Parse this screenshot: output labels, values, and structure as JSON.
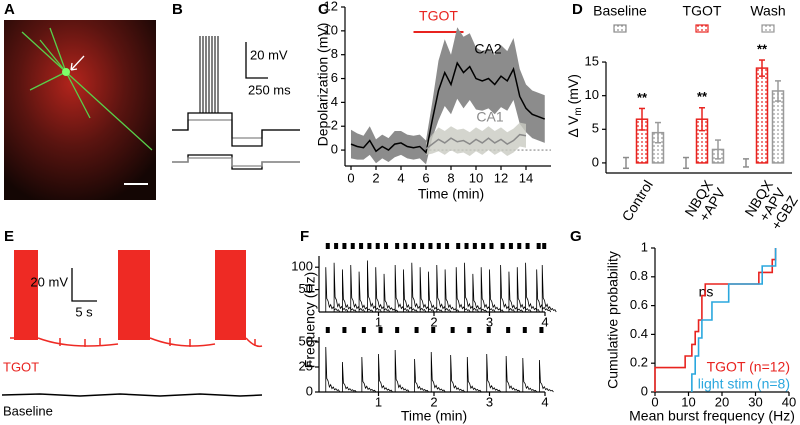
{
  "image_panel": {
    "label": "A"
  },
  "trace_panel_b": {
    "label": "B",
    "scale_y": "20 mV",
    "scale_x": "250 ms"
  },
  "trace_panel_e": {
    "label": "E",
    "scale_y": "20 mV",
    "scale_x": "5 s",
    "trace_labels": [
      "TGOT",
      "Baseline"
    ]
  },
  "chart_data": [
    {
      "panel": "C",
      "type": "line",
      "x_label": "Time (min)",
      "y_label": "Depolarization (mV)",
      "xlim": [
        0,
        16
      ],
      "xticks": [
        0,
        2,
        4,
        6,
        8,
        10,
        12,
        14
      ],
      "ylim": [
        -1,
        12
      ],
      "yticks": [
        0,
        2,
        4,
        6,
        8,
        10,
        12
      ],
      "stimulus": {
        "label": "TGOT",
        "start": 5,
        "end": 9,
        "color": "#e8231f"
      },
      "x": [
        0,
        0.5,
        1,
        1.5,
        2,
        2.5,
        3,
        3.5,
        4,
        4.5,
        5,
        5.5,
        6,
        6.5,
        7,
        7.5,
        8,
        8.5,
        9,
        9.5,
        10,
        10.5,
        11,
        11.5,
        12,
        12.5,
        13,
        13.5,
        14,
        14.5,
        15,
        15.5
      ],
      "series": [
        {
          "name": "CA2",
          "color": "#000000",
          "band_color": "#8c8c8c",
          "values": [
            0.5,
            0.3,
            0.2,
            0.8,
            -0.1,
            0.3,
            0.0,
            0.5,
            0.6,
            0.3,
            0.2,
            0.3,
            -0.2,
            2.5,
            5.0,
            6.5,
            5.5,
            7.3,
            6.5,
            7.0,
            6.0,
            5.8,
            6.0,
            5.5,
            6.2,
            5.8,
            6.8,
            4.5,
            3.5,
            3.0,
            2.8,
            2.6
          ],
          "error": [
            1.2,
            1.1,
            1.0,
            1.2,
            1.0,
            1.0,
            1.0,
            1.1,
            1.0,
            1.0,
            1.0,
            1.0,
            1.0,
            1.5,
            2.5,
            2.8,
            2.5,
            3.0,
            3.0,
            2.8,
            2.6,
            2.5,
            2.5,
            2.5,
            2.6,
            2.5,
            2.6,
            2.3,
            2.0,
            2.0,
            2.0,
            2.0
          ]
        },
        {
          "name": "CA1",
          "color": "#8a8a8a",
          "band_color": "#c9cbc2",
          "values": [
            null,
            null,
            null,
            null,
            null,
            null,
            null,
            null,
            null,
            null,
            null,
            null,
            0.1,
            0.5,
            0.9,
            0.6,
            1.0,
            0.7,
            0.8,
            0.5,
            0.9,
            0.6,
            1.0,
            0.6,
            0.9,
            0.5,
            0.8,
            1.3,
            1.2,
            null,
            null,
            null
          ],
          "error": [
            null,
            null,
            null,
            null,
            null,
            null,
            null,
            null,
            null,
            null,
            null,
            null,
            0.5,
            0.8,
            1.0,
            1.0,
            1.0,
            1.0,
            1.0,
            1.0,
            1.0,
            1.0,
            1.0,
            1.0,
            1.0,
            1.0,
            1.0,
            1.0,
            1.0,
            null,
            null,
            null
          ]
        }
      ]
    },
    {
      "panel": "D",
      "type": "bar",
      "y_label": "Δ V",
      "y_label_subscript": "m",
      "y_label_unit": "(mV)",
      "categories": [
        "Control",
        "NBQX +APV",
        "NBQX +APV +GBZ"
      ],
      "ylim": [
        -1.5,
        17
      ],
      "yticks": [
        0,
        5,
        10,
        15
      ],
      "series": [
        {
          "name": "Baseline",
          "color": "#8c8c8c",
          "values": [
            0,
            0,
            0
          ],
          "error": [
            0.8,
            0.8,
            0.6
          ]
        },
        {
          "name": "TGOT",
          "color": "#e8231f",
          "values": [
            6.5,
            6.5,
            14.1
          ],
          "error": [
            1.6,
            1.7,
            1.2
          ],
          "significance": [
            "**",
            "**",
            "**"
          ]
        },
        {
          "name": "Wash",
          "color": "#9a9a9a",
          "values": [
            4.5,
            2.0,
            10.7
          ],
          "error": [
            1.5,
            1.4,
            1.5
          ]
        }
      ]
    },
    {
      "panel": "F",
      "type": "bursts",
      "y_label": "Frequency (Hz)",
      "color": "#000000",
      "xlim": [
        0,
        4
      ],
      "xticks": [
        1,
        2,
        3,
        4
      ],
      "ylim": [
        0,
        125
      ],
      "yticks": [
        50,
        100
      ],
      "x": [
        0.05,
        0.2,
        0.35,
        0.5,
        0.65,
        0.8,
        0.95,
        1.1,
        1.3,
        1.45,
        1.6,
        1.75,
        1.9,
        2.05,
        2.2,
        2.4,
        2.55,
        2.7,
        2.85,
        3.0,
        3.2,
        3.35,
        3.5,
        3.65,
        3.85,
        3.95
      ],
      "values": [
        100,
        110,
        95,
        105,
        90,
        115,
        100,
        85,
        105,
        95,
        110,
        100,
        90,
        105,
        95,
        100,
        110,
        85,
        100,
        95,
        105,
        90,
        100,
        110,
        95,
        105
      ]
    },
    {
      "type": "bursts",
      "x_label": "Time (min)",
      "color": "#000000",
      "xlim": [
        0,
        4
      ],
      "xticks": [
        1,
        2,
        3,
        4
      ],
      "ylim": [
        0,
        55
      ],
      "yticks": [
        0,
        25,
        50
      ],
      "x": [
        0.05,
        0.35,
        0.7,
        1.0,
        1.3,
        1.65,
        1.95,
        2.3,
        2.6,
        2.95,
        3.3,
        3.6,
        3.9
      ],
      "values": [
        45,
        30,
        35,
        38,
        42,
        33,
        40,
        37,
        35,
        38,
        36,
        34,
        32
      ]
    },
    {
      "panel": "G",
      "type": "step",
      "x_label": "Mean burst frequency (Hz)",
      "y_label": "Cumulative probability",
      "annotation": "ns",
      "xlim": [
        0,
        40
      ],
      "xticks": [
        0,
        10,
        20,
        30,
        40
      ],
      "ylim": [
        0,
        1
      ],
      "yticks": [
        0,
        0.2,
        0.4,
        0.6,
        0.8,
        1
      ],
      "series": [
        {
          "name": "TGOT (n=12)",
          "color": "#e8231f",
          "x": [
            0,
            9,
            11,
            12,
            13,
            14,
            15,
            31,
            35,
            36
          ],
          "values": [
            0.17,
            0.25,
            0.33,
            0.42,
            0.5,
            0.67,
            0.75,
            0.83,
            0.92,
            1
          ]
        },
        {
          "name": "light stim (n=8)",
          "color": "#2aa7de",
          "x": [
            11,
            12,
            13,
            14,
            17,
            22,
            32,
            36
          ],
          "values": [
            0.125,
            0.25,
            0.375,
            0.5,
            0.625,
            0.75,
            0.875,
            1
          ]
        }
      ]
    }
  ]
}
